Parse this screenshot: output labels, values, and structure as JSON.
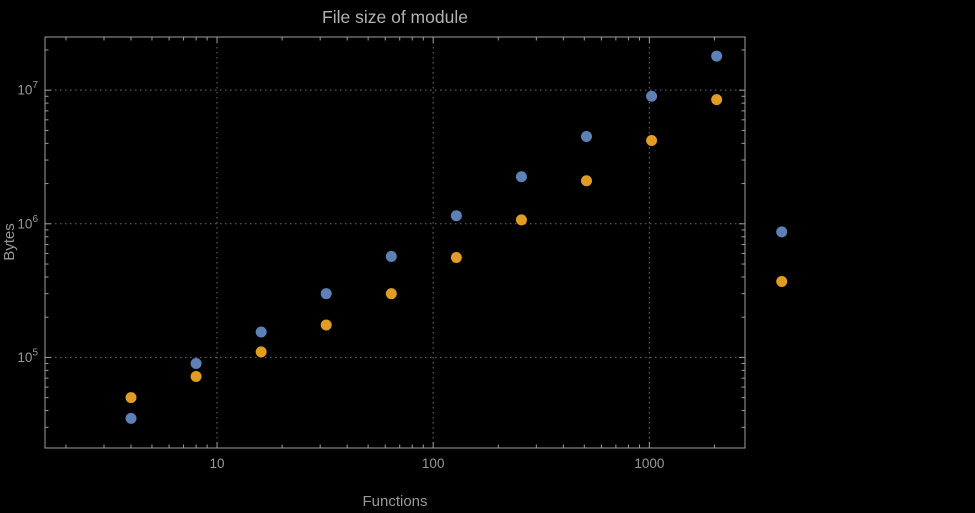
{
  "chart_data": {
    "type": "scatter",
    "title": "File size of module",
    "xlabel": "Functions",
    "ylabel": "Bytes",
    "x_scale": "log",
    "y_scale": "log",
    "xlim": [
      1.6,
      2770
    ],
    "ylim": [
      21000,
      25000000
    ],
    "grid": true,
    "legend": "none",
    "x": [
      4,
      8,
      16,
      32,
      64,
      128,
      256,
      512,
      1024,
      2048,
      4096
    ],
    "series": [
      {
        "name": "series-blue",
        "color": "#5E81B5",
        "values": [
          35000,
          90000,
          155000,
          300000,
          570000,
          1150000,
          2250000,
          4500000,
          9000000,
          18000000,
          870000
        ]
      },
      {
        "name": "series-orange",
        "color": "#E19C24",
        "values": [
          50000,
          72000,
          110000,
          175000,
          300000,
          560000,
          1070000,
          2100000,
          4200000,
          8500000,
          370000
        ]
      }
    ],
    "x_ticks": [
      {
        "value": 10,
        "label": "10"
      },
      {
        "value": 100,
        "label": "100"
      },
      {
        "value": 1000,
        "label": "1000"
      }
    ],
    "y_ticks": [
      {
        "value": 100000,
        "base": "10",
        "exp": "5"
      },
      {
        "value": 1000000,
        "base": "10",
        "exp": "6"
      },
      {
        "value": 10000000,
        "base": "10",
        "exp": "7"
      }
    ],
    "colors": {
      "background": "#000000",
      "frame": "#9e9e9e",
      "grid": "#707070",
      "tick_label": "#989898",
      "axis_label": "#989898",
      "title": "#b3b3b3"
    },
    "point_radius": 5.5
  }
}
